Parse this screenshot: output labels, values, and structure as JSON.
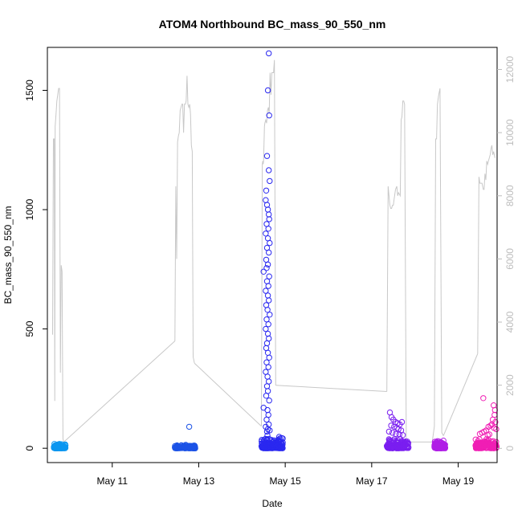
{
  "chart_data": {
    "type": "scatter",
    "title": "ATOM4 Northbound BC_mass_90_550_nm",
    "xlabel": "Date",
    "ylabel": "BC_mass_90_550_nm",
    "x_ticks": [
      "May 11",
      "May 13",
      "May 15",
      "May 17",
      "May 19"
    ],
    "x_tick_days": [
      11,
      13,
      15,
      17,
      19
    ],
    "xlim_days": [
      9.5,
      19.9
    ],
    "ylim": [
      -60,
      1680
    ],
    "y_ticks": [
      0,
      500,
      1000,
      1500
    ],
    "y2_ticks": [
      0,
      2000,
      4000,
      6000,
      8000,
      10000,
      12000
    ],
    "y2lim": [
      -450,
      12700
    ],
    "y2_color": "#bdbdbd",
    "grid": false,
    "flights": [
      {
        "color": "#0a96f0",
        "start_day": 9.65,
        "end_day": 9.92,
        "base_max": 20,
        "outliers": [
          [
            9.72,
            12
          ],
          [
            9.78,
            18
          ],
          [
            9.85,
            10
          ]
        ],
        "alt_profile": [
          [
            9.62,
            3600
          ],
          [
            9.64,
            9800
          ],
          [
            9.66,
            9800
          ],
          [
            9.67,
            1500
          ],
          [
            9.68,
            10200
          ],
          [
            9.7,
            10600
          ],
          [
            9.72,
            11000
          ],
          [
            9.74,
            11200
          ],
          [
            9.76,
            11400
          ],
          [
            9.78,
            11400
          ],
          [
            9.8,
            2400
          ],
          [
            9.82,
            5800
          ],
          [
            9.84,
            5600
          ],
          [
            9.86,
            300
          ],
          [
            9.88,
            200
          ]
        ]
      },
      {
        "color": "#1c53e6",
        "start_day": 12.45,
        "end_day": 12.92,
        "base_max": 15,
        "outliers": [
          [
            12.78,
            90
          ],
          [
            12.6,
            12
          ],
          [
            12.7,
            14
          ]
        ],
        "alt_profile": [
          [
            12.45,
            3400
          ],
          [
            12.47,
            8300
          ],
          [
            12.49,
            6000
          ],
          [
            12.51,
            9700
          ],
          [
            12.53,
            9900
          ],
          [
            12.55,
            10000
          ],
          [
            12.57,
            10700
          ],
          [
            12.59,
            10800
          ],
          [
            12.61,
            10900
          ],
          [
            12.63,
            10900
          ],
          [
            12.65,
            10000
          ],
          [
            12.67,
            10900
          ],
          [
            12.69,
            10900
          ],
          [
            12.71,
            11000
          ],
          [
            12.73,
            11800
          ],
          [
            12.75,
            10900
          ],
          [
            12.77,
            10800
          ],
          [
            12.79,
            10900
          ],
          [
            12.81,
            10600
          ],
          [
            12.83,
            9600
          ],
          [
            12.85,
            9400
          ],
          [
            12.87,
            2900
          ],
          [
            12.9,
            2700
          ]
        ]
      },
      {
        "color": "#2a28f0",
        "start_day": 14.45,
        "end_day": 14.95,
        "base_max": 60,
        "outliers": [
          [
            14.62,
            1655
          ],
          [
            14.6,
            1500
          ],
          [
            14.63,
            1395
          ],
          [
            14.58,
            1225
          ],
          [
            14.62,
            1165
          ],
          [
            14.64,
            1120
          ],
          [
            14.56,
            1080
          ],
          [
            14.55,
            1040
          ],
          [
            14.58,
            1020
          ],
          [
            14.6,
            1000
          ],
          [
            14.62,
            980
          ],
          [
            14.63,
            960
          ],
          [
            14.57,
            940
          ],
          [
            14.61,
            920
          ],
          [
            14.55,
            900
          ],
          [
            14.6,
            880
          ],
          [
            14.64,
            860
          ],
          [
            14.58,
            840
          ],
          [
            14.62,
            820
          ],
          [
            14.56,
            790
          ],
          [
            14.6,
            770
          ],
          [
            14.57,
            755
          ],
          [
            14.5,
            740
          ],
          [
            14.63,
            720
          ],
          [
            14.58,
            700
          ],
          [
            14.61,
            680
          ],
          [
            14.55,
            660
          ],
          [
            14.6,
            640
          ],
          [
            14.62,
            620
          ],
          [
            14.56,
            600
          ],
          [
            14.59,
            580
          ],
          [
            14.64,
            560
          ],
          [
            14.57,
            540
          ],
          [
            14.61,
            520
          ],
          [
            14.55,
            500
          ],
          [
            14.6,
            480
          ],
          [
            14.62,
            460
          ],
          [
            14.58,
            440
          ],
          [
            14.56,
            420
          ],
          [
            14.6,
            400
          ],
          [
            14.63,
            380
          ],
          [
            14.57,
            360
          ],
          [
            14.61,
            340
          ],
          [
            14.55,
            320
          ],
          [
            14.59,
            300
          ],
          [
            14.62,
            280
          ],
          [
            14.58,
            260
          ],
          [
            14.6,
            240
          ],
          [
            14.56,
            220
          ],
          [
            14.63,
            200
          ],
          [
            14.5,
            170
          ],
          [
            14.59,
            160
          ],
          [
            14.61,
            140
          ],
          [
            14.57,
            120
          ],
          [
            14.62,
            100
          ],
          [
            14.55,
            90
          ],
          [
            14.6,
            80
          ],
          [
            14.64,
            75
          ],
          [
            14.58,
            70
          ]
        ],
        "alt_profile": [
          [
            14.45,
            700
          ],
          [
            14.47,
            9000
          ],
          [
            14.48,
            9100
          ],
          [
            14.49,
            9000
          ],
          [
            14.5,
            9100
          ],
          [
            14.52,
            10200
          ],
          [
            14.53,
            10300
          ],
          [
            14.55,
            10400
          ],
          [
            14.57,
            10300
          ],
          [
            14.59,
            10700
          ],
          [
            14.61,
            10800
          ],
          [
            14.63,
            10600
          ],
          [
            14.65,
            11900
          ],
          [
            14.67,
            11200
          ],
          [
            14.69,
            11900
          ],
          [
            14.71,
            11900
          ],
          [
            14.73,
            11900
          ],
          [
            14.75,
            12300
          ],
          [
            14.78,
            2000
          ]
        ]
      },
      {
        "color": "#7a1ef0",
        "start_day": 17.35,
        "end_day": 17.85,
        "base_max": 45,
        "outliers": [
          [
            17.42,
            150
          ],
          [
            17.46,
            130
          ],
          [
            17.5,
            120
          ],
          [
            17.55,
            110
          ],
          [
            17.6,
            105
          ],
          [
            17.65,
            100
          ],
          [
            17.7,
            110
          ],
          [
            17.45,
            95
          ],
          [
            17.52,
            90
          ],
          [
            17.58,
            85
          ],
          [
            17.62,
            80
          ],
          [
            17.68,
            75
          ],
          [
            17.4,
            70
          ],
          [
            17.48,
            65
          ],
          [
            17.56,
            60
          ],
          [
            17.64,
            58
          ],
          [
            17.72,
            55
          ]
        ],
        "alt_profile": [
          [
            17.35,
            1800
          ],
          [
            17.38,
            8300
          ],
          [
            17.4,
            8000
          ],
          [
            17.42,
            7700
          ],
          [
            17.44,
            7600
          ],
          [
            17.46,
            7600
          ],
          [
            17.48,
            7700
          ],
          [
            17.5,
            7700
          ],
          [
            17.52,
            7900
          ],
          [
            17.55,
            8200
          ],
          [
            17.58,
            8300
          ],
          [
            17.6,
            8000
          ],
          [
            17.62,
            8100
          ],
          [
            17.66,
            8000
          ],
          [
            17.68,
            10400
          ],
          [
            17.7,
            10500
          ],
          [
            17.72,
            11000
          ],
          [
            17.74,
            11000
          ],
          [
            17.76,
            10900
          ],
          [
            17.8,
            200
          ]
        ]
      },
      {
        "color": "#b01ee6",
        "start_day": 18.45,
        "end_day": 18.7,
        "base_max": 30,
        "outliers": [
          [
            18.52,
            30
          ],
          [
            18.6,
            25
          ],
          [
            18.66,
            32
          ]
        ],
        "alt_profile": [
          [
            18.4,
            200
          ],
          [
            18.45,
            700
          ],
          [
            18.48,
            9800
          ],
          [
            18.5,
            9800
          ],
          [
            18.52,
            10900
          ],
          [
            18.55,
            11200
          ],
          [
            18.58,
            11400
          ],
          [
            18.62,
            500
          ],
          [
            18.66,
            400
          ]
        ]
      },
      {
        "color": "#f01eb4",
        "start_day": 19.4,
        "end_day": 19.9,
        "base_max": 45,
        "outliers": [
          [
            19.58,
            210
          ],
          [
            19.82,
            180
          ],
          [
            19.85,
            160
          ],
          [
            19.84,
            140
          ],
          [
            19.8,
            120
          ],
          [
            19.86,
            110
          ],
          [
            19.78,
            100
          ],
          [
            19.75,
            95
          ],
          [
            19.7,
            90
          ],
          [
            19.83,
            85
          ],
          [
            19.88,
            80
          ],
          [
            19.65,
            75
          ],
          [
            19.6,
            70
          ],
          [
            19.55,
            65
          ],
          [
            19.5,
            60
          ],
          [
            19.72,
            58
          ],
          [
            19.68,
            55
          ]
        ],
        "alt_profile": [
          [
            19.45,
            3000
          ],
          [
            19.48,
            8600
          ],
          [
            19.5,
            8400
          ],
          [
            19.55,
            8400
          ],
          [
            19.58,
            8200
          ],
          [
            19.6,
            8200
          ],
          [
            19.62,
            8700
          ],
          [
            19.64,
            8500
          ],
          [
            19.66,
            9100
          ],
          [
            19.68,
            9000
          ],
          [
            19.7,
            9100
          ],
          [
            19.72,
            9200
          ],
          [
            19.74,
            9300
          ],
          [
            19.76,
            9500
          ],
          [
            19.78,
            9600
          ],
          [
            19.8,
            9300
          ],
          [
            19.82,
            9400
          ],
          [
            19.85,
            9200
          ]
        ]
      }
    ],
    "transit_lines": [
      [
        [
          9.88,
          200
        ],
        [
          12.45,
          3400
        ]
      ],
      [
        [
          12.9,
          2700
        ],
        [
          14.45,
          700
        ]
      ],
      [
        [
          14.78,
          2000
        ],
        [
          17.35,
          1800
        ]
      ],
      [
        [
          17.8,
          200
        ],
        [
          18.4,
          200
        ]
      ],
      [
        [
          18.66,
          400
        ],
        [
          19.45,
          3000
        ]
      ]
    ]
  }
}
